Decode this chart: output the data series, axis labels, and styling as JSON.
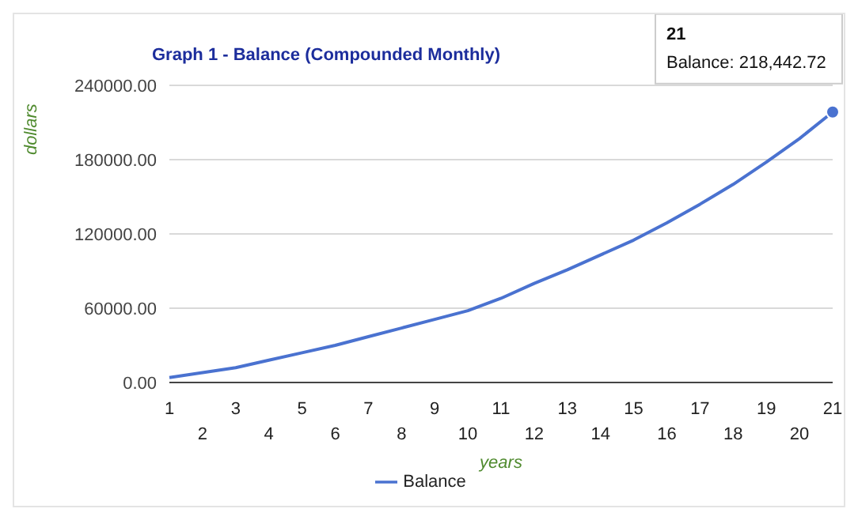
{
  "chart_data": {
    "type": "line",
    "title": "Graph 1 - Balance (Compounded Monthly)",
    "xlabel": "years",
    "ylabel": "dollars",
    "categories": [
      "1",
      "2",
      "3",
      "4",
      "5",
      "6",
      "7",
      "8",
      "9",
      "10",
      "11",
      "12",
      "13",
      "14",
      "15",
      "16",
      "17",
      "18",
      "19",
      "20",
      "21"
    ],
    "series": [
      {
        "name": "Balance",
        "color": "#4a72d0",
        "values": [
          4000,
          8000,
          12000,
          18000,
          24000,
          30000,
          37000,
          44000,
          51000,
          58000,
          68000,
          80000,
          91000,
          103000,
          115000,
          129000,
          144000,
          160000,
          178000,
          197000,
          218442.72
        ]
      }
    ],
    "ylim": [
      0,
      240000
    ],
    "yticks": [
      {
        "value": 0,
        "label": "0.00"
      },
      {
        "value": 60000,
        "label": "60000.00"
      },
      {
        "value": 120000,
        "label": "120000.00"
      },
      {
        "value": 180000,
        "label": "180000.00"
      },
      {
        "value": 240000,
        "label": "240000.00"
      }
    ],
    "grid": "y",
    "legend": "bottom",
    "marker": "none",
    "line_style": "solid",
    "annotations": [
      "21",
      "Balance: 218,442.72"
    ]
  }
}
